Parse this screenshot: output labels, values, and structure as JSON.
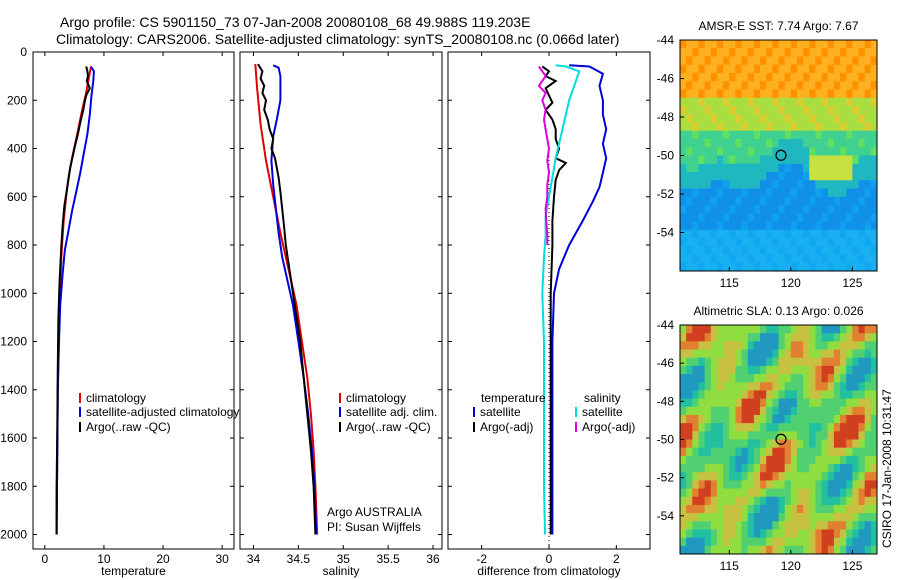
{
  "title_line1": "Argo profile: CS 5901150_73 07-Jan-2008 20080108_68 49.988S 119.203E",
  "title_line2": "Climatology: CARS2006. Satellite-adjusted climatology: synTS_20080108.nc (0.066d later)",
  "colors": {
    "climatology": "#e00000",
    "satellite": "#0000dd",
    "argo": "#000000",
    "salinity_sat": "#00dddd",
    "salinity_argo": "#dd00dd"
  },
  "chart_data": [
    {
      "type": "line",
      "xlabel": "temperature",
      "xlim": [
        -2,
        32
      ],
      "xticks": [
        0,
        10,
        20,
        30
      ],
      "ylim": [
        0,
        2060
      ],
      "yticks": [
        0,
        200,
        400,
        600,
        800,
        1000,
        1200,
        1400,
        1600,
        1800,
        2000
      ],
      "y_reversed": true,
      "legend": [
        "climatology",
        "satellite-adjusted climatology",
        "Argo(..raw -QC)"
      ],
      "series": [
        {
          "name": "climatology",
          "color": "climatology",
          "points": [
            [
              7.8,
              60
            ],
            [
              7.5,
              100
            ],
            [
              7.2,
              140
            ],
            [
              6.9,
              180
            ],
            [
              6.4,
              230
            ],
            [
              5.9,
              290
            ],
            [
              5.3,
              360
            ],
            [
              4.6,
              440
            ],
            [
              4.0,
              520
            ],
            [
              3.6,
              600
            ],
            [
              3.2,
              700
            ],
            [
              2.9,
              800
            ],
            [
              2.6,
              950
            ],
            [
              2.4,
              1150
            ],
            [
              2.2,
              1400
            ],
            [
              2.1,
              1700
            ],
            [
              2.0,
              2000
            ]
          ]
        },
        {
          "name": "satellite-adjusted climatology",
          "color": "satellite",
          "points": [
            [
              7.8,
              60
            ],
            [
              8.3,
              80
            ],
            [
              8.2,
              120
            ],
            [
              7.9,
              180
            ],
            [
              7.6,
              260
            ],
            [
              7.2,
              340
            ],
            [
              6.6,
              420
            ],
            [
              6.0,
              500
            ],
            [
              5.3,
              580
            ],
            [
              4.6,
              660
            ],
            [
              4.0,
              740
            ],
            [
              3.4,
              820
            ],
            [
              3.0,
              920
            ],
            [
              2.6,
              1050
            ],
            [
              2.4,
              1200
            ],
            [
              2.2,
              1400
            ],
            [
              2.1,
              1700
            ],
            [
              2.0,
              2000
            ]
          ]
        },
        {
          "name": "Argo(..raw -QC)",
          "color": "argo",
          "points": [
            [
              7.0,
              60
            ],
            [
              7.2,
              80
            ],
            [
              7.3,
              100
            ],
            [
              7.1,
              120
            ],
            [
              7.6,
              150
            ],
            [
              7.0,
              180
            ],
            [
              6.8,
              200
            ],
            [
              6.5,
              240
            ],
            [
              6.1,
              280
            ],
            [
              5.6,
              340
            ],
            [
              5.0,
              400
            ],
            [
              4.3,
              480
            ],
            [
              3.8,
              560
            ],
            [
              3.3,
              640
            ],
            [
              3.0,
              720
            ],
            [
              2.8,
              800
            ],
            [
              2.5,
              950
            ],
            [
              2.3,
              1100
            ],
            [
              2.2,
              1300
            ],
            [
              2.1,
              1600
            ],
            [
              2.0,
              1800
            ],
            [
              2.0,
              2000
            ]
          ]
        }
      ]
    },
    {
      "type": "line",
      "xlabel": "salinity",
      "xlim": [
        33.85,
        36.1
      ],
      "xticks": [
        34,
        34.5,
        35,
        35.5,
        36
      ],
      "ylim": [
        0,
        2060
      ],
      "y_reversed": true,
      "legend": [
        "climatology",
        "satellite adj. clim.",
        "Argo(..raw -QC)"
      ],
      "annotation": [
        "Argo AUSTRALIA",
        "PI: Susan Wijffels"
      ],
      "series": [
        {
          "name": "climatology",
          "color": "climatology",
          "points": [
            [
              34.02,
              50
            ],
            [
              34.04,
              150
            ],
            [
              34.08,
              300
            ],
            [
              34.14,
              450
            ],
            [
              34.22,
              600
            ],
            [
              34.3,
              750
            ],
            [
              34.36,
              850
            ],
            [
              34.42,
              950
            ],
            [
              34.48,
              1050
            ],
            [
              34.54,
              1200
            ],
            [
              34.6,
              1350
            ],
            [
              34.64,
              1500
            ],
            [
              34.67,
              1650
            ],
            [
              34.69,
              1800
            ],
            [
              34.71,
              2000
            ]
          ]
        },
        {
          "name": "satellite adj. clim.",
          "color": "satellite",
          "points": [
            [
              34.22,
              55
            ],
            [
              34.28,
              65
            ],
            [
              34.3,
              100
            ],
            [
              34.3,
              200
            ],
            [
              34.26,
              280
            ],
            [
              34.22,
              350
            ],
            [
              34.2,
              450
            ],
            [
              34.22,
              550
            ],
            [
              34.25,
              650
            ],
            [
              34.28,
              750
            ],
            [
              34.32,
              850
            ],
            [
              34.38,
              950
            ],
            [
              34.44,
              1050
            ],
            [
              34.5,
              1200
            ],
            [
              34.56,
              1350
            ],
            [
              34.61,
              1500
            ],
            [
              34.65,
              1650
            ],
            [
              34.68,
              1800
            ],
            [
              34.7,
              2000
            ]
          ]
        },
        {
          "name": "Argo(..raw -QC)",
          "color": "argo",
          "points": [
            [
              34.05,
              50
            ],
            [
              34.1,
              80
            ],
            [
              34.08,
              110
            ],
            [
              34.12,
              140
            ],
            [
              34.1,
              170
            ],
            [
              34.14,
              200
            ],
            [
              34.12,
              240
            ],
            [
              34.16,
              280
            ],
            [
              34.18,
              320
            ],
            [
              34.22,
              360
            ],
            [
              34.2,
              400
            ],
            [
              34.24,
              440
            ],
            [
              34.26,
              480
            ],
            [
              34.28,
              520
            ],
            [
              34.3,
              580
            ],
            [
              34.32,
              650
            ],
            [
              34.34,
              720
            ],
            [
              34.36,
              800
            ],
            [
              34.4,
              900
            ],
            [
              34.44,
              1000
            ],
            [
              34.48,
              1100
            ],
            [
              34.52,
              1200
            ],
            [
              34.56,
              1350
            ],
            [
              34.6,
              1500
            ],
            [
              34.64,
              1650
            ],
            [
              34.67,
              1800
            ],
            [
              34.69,
              2000
            ]
          ]
        }
      ]
    },
    {
      "type": "line",
      "xlabel": "difference from climatology",
      "xlim": [
        -3,
        3
      ],
      "xticks": [
        -2,
        0,
        2
      ],
      "ylim": [
        0,
        2060
      ],
      "y_reversed": true,
      "legend_headers": [
        "temperature",
        "salinity"
      ],
      "legend": [
        "satellite",
        "Argo(-adj)",
        "satellite",
        "Argo(-adj)"
      ],
      "series": [
        {
          "name": "satellite",
          "color": "satellite",
          "points": [
            [
              0.6,
              55
            ],
            [
              1.2,
              60
            ],
            [
              1.6,
              90
            ],
            [
              1.5,
              140
            ],
            [
              1.6,
              200
            ],
            [
              1.6,
              260
            ],
            [
              1.7,
              320
            ],
            [
              1.6,
              380
            ],
            [
              1.7,
              440
            ],
            [
              1.6,
              500
            ],
            [
              1.5,
              560
            ],
            [
              1.3,
              620
            ],
            [
              1.0,
              700
            ],
            [
              0.6,
              800
            ],
            [
              0.3,
              900
            ],
            [
              0.15,
              1000
            ],
            [
              0.1,
              1200
            ],
            [
              0.1,
              1500
            ],
            [
              0.1,
              1800
            ],
            [
              0.1,
              2000
            ]
          ]
        },
        {
          "name": "Argo(-adj)",
          "color": "argo",
          "points": [
            [
              -0.2,
              60
            ],
            [
              0.0,
              80
            ],
            [
              -0.1,
              100
            ],
            [
              0.2,
              120
            ],
            [
              -0.1,
              150
            ],
            [
              0.0,
              180
            ],
            [
              0.1,
              210
            ],
            [
              -0.1,
              240
            ],
            [
              0.1,
              280
            ],
            [
              0.2,
              320
            ],
            [
              0.2,
              360
            ],
            [
              0.3,
              400
            ],
            [
              0.2,
              440
            ],
            [
              0.5,
              460
            ],
            [
              0.3,
              490
            ],
            [
              0.2,
              530
            ],
            [
              0.15,
              600
            ],
            [
              0.1,
              700
            ],
            [
              0.1,
              800
            ],
            [
              0.05,
              1000
            ],
            [
              0.05,
              1500
            ],
            [
              0.05,
              2000
            ]
          ]
        },
        {
          "name": "satellite",
          "color": "salinity_sat",
          "points": [
            [
              0.2,
              55
            ],
            [
              0.5,
              60
            ],
            [
              0.9,
              80
            ],
            [
              0.8,
              120
            ],
            [
              0.6,
              200
            ],
            [
              0.5,
              260
            ],
            [
              0.4,
              320
            ],
            [
              0.3,
              380
            ],
            [
              0.2,
              440
            ],
            [
              0.1,
              520
            ],
            [
              0.0,
              600
            ],
            [
              -0.1,
              680
            ],
            [
              -0.1,
              760
            ],
            [
              -0.15,
              850
            ],
            [
              -0.2,
              1000
            ],
            [
              -0.15,
              1200
            ],
            [
              -0.15,
              1500
            ],
            [
              -0.15,
              1800
            ],
            [
              -0.12,
              2000
            ]
          ]
        },
        {
          "name": "Argo(-adj)",
          "color": "salinity_argo",
          "points": [
            [
              -0.3,
              60
            ],
            [
              -0.2,
              80
            ],
            [
              -0.1,
              100
            ],
            [
              -0.2,
              120
            ],
            [
              -0.3,
              140
            ],
            [
              -0.1,
              170
            ],
            [
              -0.2,
              200
            ],
            [
              -0.1,
              240
            ],
            [
              -0.15,
              280
            ],
            [
              -0.1,
              320
            ],
            [
              -0.05,
              360
            ],
            [
              0.0,
              400
            ],
            [
              -0.05,
              450
            ],
            [
              0.0,
              500
            ],
            [
              -0.05,
              550
            ],
            [
              -0.05,
              600
            ],
            [
              -0.1,
              650
            ],
            [
              -0.08,
              700
            ],
            [
              -0.05,
              760
            ],
            [
              -0.05,
              800
            ]
          ]
        }
      ]
    },
    {
      "type": "heatmap",
      "title": "AMSR-E SST: 7.74 Argo: 7.67",
      "xticks": [
        115,
        120,
        125
      ],
      "yticks": [
        -44,
        -46,
        -48,
        -50,
        -52,
        -54
      ],
      "xlim": [
        111,
        127
      ],
      "ylim": [
        -56,
        -44
      ],
      "marker": [
        119.203,
        -49.988
      ]
    },
    {
      "type": "heatmap",
      "title": "Altimetric SLA: 0.13 Argo: 0.026",
      "xticks": [
        115,
        120,
        125
      ],
      "yticks": [
        -44,
        -46,
        -48,
        -50,
        -52,
        -54
      ],
      "xlim": [
        111,
        127
      ],
      "ylim": [
        -56,
        -44
      ],
      "marker": [
        119.203,
        -49.988
      ]
    }
  ],
  "footer_vertical": "CSIRO 17-Jan-2008 10:31:47"
}
